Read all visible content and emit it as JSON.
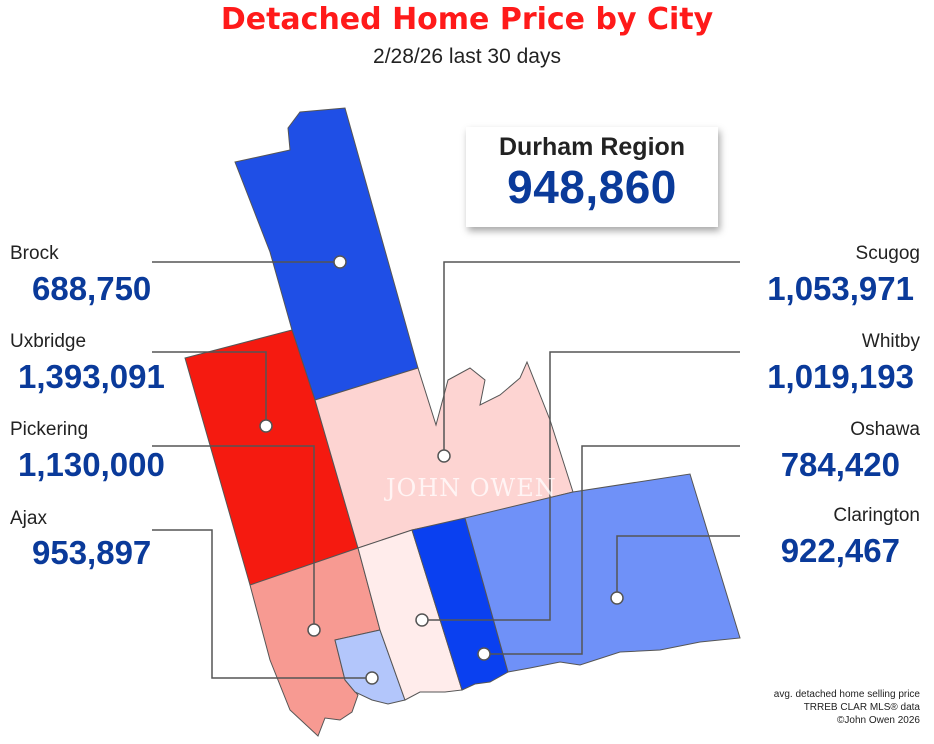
{
  "title": "Detached Home Price by City",
  "subtitle": "2/28/26  last 30 days",
  "region": {
    "name": "Durham Region",
    "price": "948,860"
  },
  "cities": [
    {
      "name": "Brock",
      "price": "688,750",
      "color": "#1f4fe6"
    },
    {
      "name": "Uxbridge",
      "price": "1,393,091",
      "color": "#f51a10"
    },
    {
      "name": "Pickering",
      "price": "1,130,000",
      "color": "#f79a92"
    },
    {
      "name": "Ajax",
      "price": "953,897",
      "color": "#b3c6fb"
    },
    {
      "name": "Scugog",
      "price": "1,053,971",
      "color": "#fdd4d2"
    },
    {
      "name": "Whitby",
      "price": "1,019,193",
      "color": "#ffeceb"
    },
    {
      "name": "Oshawa",
      "price": "784,420",
      "color": "#0a40f0"
    },
    {
      "name": "Clarington",
      "price": "922,467",
      "color": "#6f91f8"
    }
  ],
  "watermark": "JOHN OWEN",
  "footer": {
    "line1": "avg. detached home selling price",
    "line2": "TRREB CLAR MLS® data",
    "line3": "©John Owen 2026"
  }
}
